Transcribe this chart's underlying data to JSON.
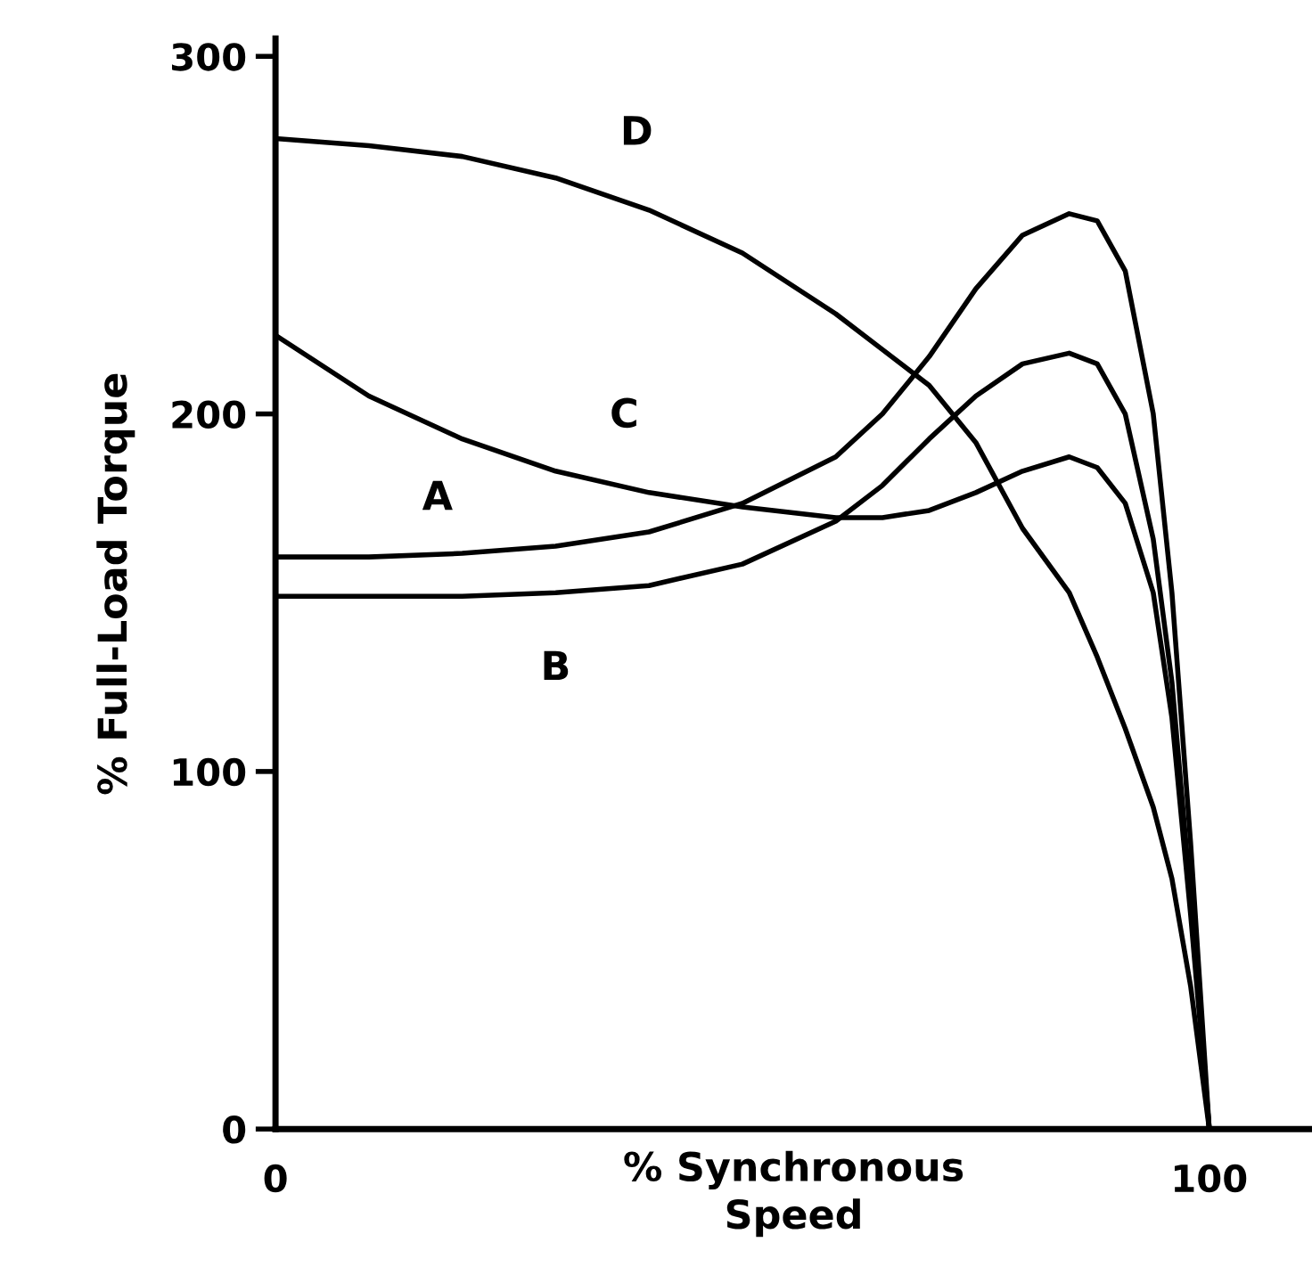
{
  "chart_data": {
    "type": "line",
    "xlabel": "% Synchronous\nSpeed",
    "ylabel": "% Full-Load Torque",
    "xlim": [
      0,
      111
    ],
    "ylim": [
      0,
      305
    ],
    "xticks": [
      0,
      100
    ],
    "yticks": [
      0,
      100,
      200,
      300
    ],
    "grid": false,
    "legend": false,
    "marker": "none",
    "line_style": "solid",
    "series": [
      {
        "name": "A",
        "color": "#000000",
        "x": [
          0,
          10,
          20,
          30,
          40,
          50,
          60,
          65,
          70,
          75,
          80,
          85,
          88,
          91,
          94,
          96,
          98,
          100
        ],
        "values": [
          160,
          160,
          161,
          163,
          167,
          175,
          188,
          200,
          216,
          235,
          250,
          256,
          254,
          240,
          200,
          150,
          80,
          0
        ]
      },
      {
        "name": "B",
        "color": "#000000",
        "x": [
          0,
          10,
          20,
          30,
          40,
          50,
          60,
          65,
          70,
          75,
          80,
          85,
          88,
          91,
          94,
          96,
          98,
          100
        ],
        "values": [
          149,
          149,
          149,
          150,
          152,
          158,
          170,
          180,
          193,
          205,
          214,
          217,
          214,
          200,
          165,
          125,
          65,
          0
        ]
      },
      {
        "name": "C",
        "color": "#000000",
        "x": [
          0,
          10,
          20,
          30,
          40,
          50,
          60,
          65,
          70,
          75,
          80,
          85,
          88,
          91,
          94,
          96,
          98,
          100
        ],
        "values": [
          222,
          205,
          193,
          184,
          178,
          174,
          171,
          171,
          173,
          178,
          184,
          188,
          185,
          175,
          150,
          115,
          60,
          0
        ]
      },
      {
        "name": "D",
        "color": "#000000",
        "x": [
          0,
          10,
          20,
          30,
          40,
          50,
          60,
          65,
          70,
          75,
          80,
          85,
          88,
          91,
          94,
          96,
          98,
          100
        ],
        "values": [
          277,
          275,
          272,
          266,
          257,
          245,
          228,
          218,
          208,
          192,
          168,
          150,
          132,
          112,
          90,
          70,
          40,
          0
        ]
      }
    ]
  }
}
